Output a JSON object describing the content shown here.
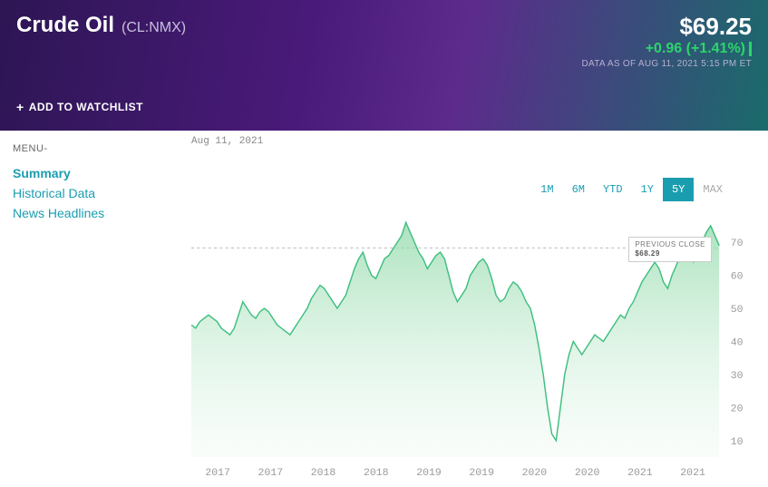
{
  "header": {
    "title": "Crude Oil",
    "ticker": "(CL:NMX)",
    "price": "$69.25",
    "change": "+0.96 (+1.41%)",
    "data_as_of": "DATA AS OF AUG 11, 2021 5:15 PM ET",
    "watchlist_label": "ADD TO WATCHLIST"
  },
  "menu": {
    "label": "MENU-",
    "items": [
      {
        "label": "Summary",
        "active": true
      },
      {
        "label": "Historical Data",
        "active": false
      },
      {
        "label": "News Headlines",
        "active": false
      }
    ]
  },
  "chart": {
    "date_label": "Aug 11, 2021",
    "ranges": [
      {
        "label": "1M",
        "active": false
      },
      {
        "label": "6M",
        "active": false
      },
      {
        "label": "YTD",
        "active": false
      },
      {
        "label": "1Y",
        "active": false
      },
      {
        "label": "5Y",
        "active": true
      },
      {
        "label": "MAX",
        "active": false,
        "muted": true
      }
    ],
    "type": "area",
    "x_labels": [
      "2017",
      "2017",
      "2018",
      "2018",
      "2019",
      "2019",
      "2020",
      "2020",
      "2021",
      "2021"
    ],
    "y_ticks": [
      10,
      20,
      30,
      40,
      50,
      60,
      70
    ],
    "ylim": [
      5,
      78
    ],
    "line_color": "#3fbf7f",
    "fill_top": "#8fd9a8",
    "fill_bottom": "#e8f7ed",
    "grid_color": "#e8e8e8",
    "dashed_color": "#bbbbbb",
    "prev_close_label": "PREVIOUS CLOSE",
    "prev_close_value": "$68.29",
    "prev_close_y": 68.29,
    "series": [
      45,
      44,
      46,
      47,
      48,
      47,
      46,
      44,
      43,
      42,
      44,
      48,
      52,
      50,
      48,
      47,
      49,
      50,
      49,
      47,
      45,
      44,
      43,
      42,
      44,
      46,
      48,
      50,
      53,
      55,
      57,
      56,
      54,
      52,
      50,
      52,
      54,
      58,
      62,
      65,
      67,
      63,
      60,
      59,
      62,
      65,
      66,
      68,
      70,
      72,
      76,
      73,
      70,
      67,
      65,
      62,
      64,
      66,
      67,
      65,
      60,
      55,
      52,
      54,
      56,
      60,
      62,
      64,
      65,
      63,
      59,
      54,
      52,
      53,
      56,
      58,
      57,
      55,
      52,
      50,
      45,
      38,
      30,
      20,
      12,
      10,
      20,
      30,
      36,
      40,
      38,
      36,
      38,
      40,
      42,
      41,
      40,
      42,
      44,
      46,
      48,
      47,
      50,
      52,
      55,
      58,
      60,
      62,
      64,
      62,
      58,
      56,
      60,
      63,
      66,
      68,
      66,
      64,
      67,
      70,
      73,
      75,
      72,
      69
    ]
  }
}
